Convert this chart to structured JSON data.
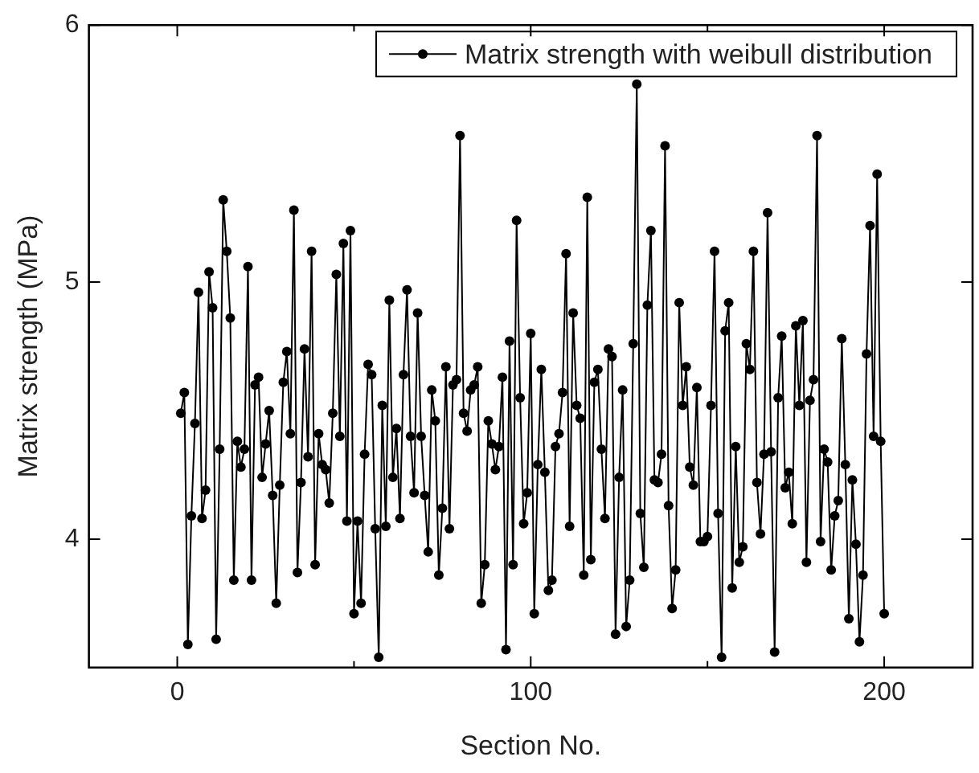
{
  "chart_data": {
    "type": "line",
    "xlabel": "Section No.",
    "ylabel": "Matrix strength (MPa)",
    "xlim": [
      -25,
      225
    ],
    "xticks": [
      0,
      {
        "value": 50,
        "label": null
      },
      100,
      {
        "value": 150,
        "label": null
      },
      200
    ],
    "ylim": [
      3.5,
      6
    ],
    "yticks": [
      4,
      5,
      6
    ],
    "grid": false,
    "legend": "top right",
    "marker": "circle",
    "line_style": "solid",
    "x": [
      1,
      2,
      3,
      4,
      5,
      6,
      7,
      8,
      9,
      10,
      11,
      12,
      13,
      14,
      15,
      16,
      17,
      18,
      19,
      20,
      21,
      22,
      23,
      24,
      25,
      26,
      27,
      28,
      29,
      30,
      31,
      32,
      33,
      34,
      35,
      36,
      37,
      38,
      39,
      40,
      41,
      42,
      43,
      44,
      45,
      46,
      47,
      48,
      49,
      50,
      51,
      52,
      53,
      54,
      55,
      56,
      57,
      58,
      59,
      60,
      61,
      62,
      63,
      64,
      65,
      66,
      67,
      68,
      69,
      70,
      71,
      72,
      73,
      74,
      75,
      76,
      77,
      78,
      79,
      80,
      81,
      82,
      83,
      84,
      85,
      86,
      87,
      88,
      89,
      90,
      91,
      92,
      93,
      94,
      95,
      96,
      97,
      98,
      99,
      100,
      101,
      102,
      103,
      104,
      105,
      106,
      107,
      108,
      109,
      110,
      111,
      112,
      113,
      114,
      115,
      116,
      117,
      118,
      119,
      120,
      121,
      122,
      123,
      124,
      125,
      126,
      127,
      128,
      129,
      130,
      131,
      132,
      133,
      134,
      135,
      136,
      137,
      138,
      139,
      140,
      141,
      142,
      143,
      144,
      145,
      146,
      147,
      148,
      149,
      150,
      151,
      152,
      153,
      154,
      155,
      156,
      157,
      158,
      159,
      160,
      161,
      162,
      163,
      164,
      165,
      166,
      167,
      168,
      169,
      170,
      171,
      172,
      173,
      174,
      175,
      176,
      177,
      178,
      179,
      180,
      181,
      182,
      183,
      184,
      185,
      186,
      187,
      188,
      189,
      190,
      191,
      192,
      193,
      194,
      195,
      196,
      197,
      198,
      199,
      200
    ],
    "series": [
      {
        "name": "Matrix strength with weibull distribution",
        "color": "#000000",
        "values": [
          4.49,
          4.57,
          3.59,
          4.09,
          4.45,
          4.96,
          4.08,
          4.19,
          5.04,
          4.9,
          3.61,
          4.35,
          5.32,
          5.12,
          4.86,
          3.84,
          4.38,
          4.28,
          4.35,
          5.06,
          3.84,
          4.6,
          4.63,
          4.24,
          4.37,
          4.5,
          4.17,
          3.75,
          4.21,
          4.61,
          4.73,
          4.41,
          5.28,
          3.87,
          4.22,
          4.74,
          4.32,
          5.12,
          3.9,
          4.41,
          4.29,
          4.27,
          4.14,
          4.49,
          5.03,
          4.4,
          5.15,
          4.07,
          5.2,
          3.71,
          4.07,
          3.75,
          4.33,
          4.68,
          4.64,
          4.04,
          3.54,
          4.52,
          4.05,
          4.93,
          4.24,
          4.43,
          4.08,
          4.64,
          4.97,
          4.4,
          4.18,
          4.88,
          4.4,
          4.17,
          3.95,
          4.58,
          4.46,
          3.86,
          4.12,
          4.67,
          4.04,
          4.6,
          4.62,
          5.57,
          4.49,
          4.42,
          4.58,
          4.6,
          4.67,
          3.75,
          3.9,
          4.46,
          4.37,
          4.27,
          4.36,
          4.63,
          3.57,
          4.77,
          3.9,
          5.24,
          4.55,
          4.06,
          4.18,
          4.8,
          3.71,
          4.29,
          4.66,
          4.26,
          3.8,
          3.84,
          4.36,
          4.41,
          4.57,
          5.11,
          4.05,
          4.88,
          4.52,
          4.47,
          3.86,
          5.33,
          3.92,
          4.61,
          4.66,
          4.35,
          4.08,
          4.74,
          4.71,
          3.63,
          4.24,
          4.58,
          3.66,
          3.84,
          4.76,
          5.77,
          4.1,
          3.89,
          4.91,
          5.2,
          4.23,
          4.22,
          4.33,
          5.53,
          4.13,
          3.73,
          3.88,
          4.92,
          4.52,
          4.67,
          4.28,
          4.21,
          4.59,
          3.99,
          3.99,
          4.01,
          4.52,
          5.12,
          4.1,
          3.54,
          4.81,
          4.92,
          3.81,
          4.36,
          3.91,
          3.97,
          4.76,
          4.66,
          5.12,
          4.22,
          4.02,
          4.33,
          5.27,
          4.34,
          3.56,
          4.55,
          4.79,
          4.2,
          4.26,
          4.06,
          4.83,
          4.52,
          4.85,
          3.91,
          4.54,
          4.62,
          5.57,
          3.99,
          4.35,
          4.3,
          3.88,
          4.09,
          4.15,
          4.78,
          4.29,
          3.69,
          4.23,
          3.98,
          3.6,
          3.86,
          4.72,
          5.22,
          4.4,
          5.42,
          4.38,
          3.71
        ]
      }
    ]
  }
}
